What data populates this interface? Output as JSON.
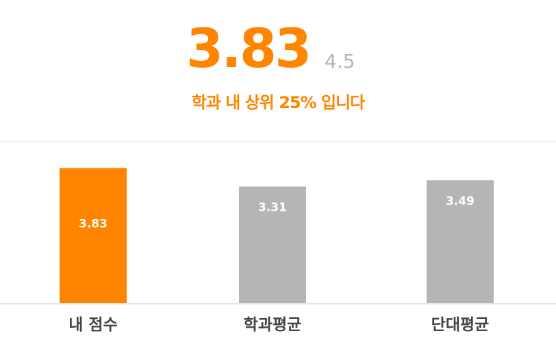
{
  "header": {
    "score": "3.83",
    "max_score": "4.5",
    "rank_text": "학과 내 상위 25% 입니다"
  },
  "colors": {
    "accent": "#ff8500",
    "neutral": "#b5b5b5",
    "baseline": "#e6e6e6",
    "category_text": "#444444"
  },
  "chart_data": {
    "type": "bar",
    "categories": [
      "내 점수",
      "학과평균",
      "단대평균"
    ],
    "values": [
      3.83,
      3.31,
      3.49
    ],
    "data_labels": [
      "3.83",
      "3.31",
      "3.49"
    ],
    "highlight_index": 0,
    "ylim": [
      0,
      4.5
    ],
    "grid": false,
    "legend": "none"
  }
}
